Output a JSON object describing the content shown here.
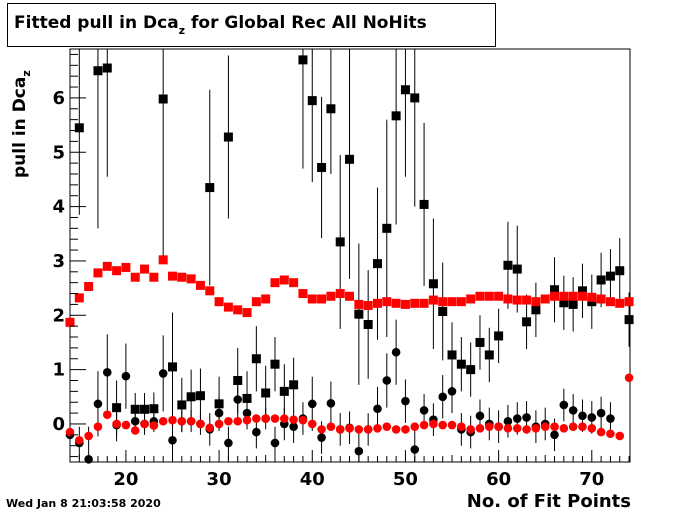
{
  "title": {
    "main": "Fitted pull in Dca",
    "sub": "z",
    "rest": " for Global Rec All NoHits"
  },
  "axes": {
    "ylabel": "pull in Dca",
    "ylabel_sub": "z",
    "xlabel": "No. of Fit Points"
  },
  "timestamp": "Wed Jan  8 21:03:58 2020",
  "colors": {
    "series_black": "#000000",
    "series_red": "#ff0000",
    "frame": "#000000"
  },
  "chart_data": {
    "type": "scatter",
    "xlim": [
      14,
      74.1
    ],
    "ylim": [
      -0.7,
      6.9
    ],
    "xticks": [
      20,
      30,
      40,
      50,
      60,
      70
    ],
    "yticks": [
      0,
      1,
      2,
      3,
      4,
      5,
      6
    ],
    "grid": false,
    "series": [
      {
        "marker": "square",
        "color": "#000000",
        "points": [
          [
            15,
            5.45,
            1.6
          ],
          [
            17,
            6.5,
            2.9
          ],
          [
            18,
            6.55,
            2.0
          ],
          [
            19,
            0.3,
            0.5
          ],
          [
            21,
            0.27,
            0.3
          ],
          [
            22,
            0.27,
            0.3
          ],
          [
            23,
            0.28,
            0.3
          ],
          [
            24,
            5.98,
            3.0
          ],
          [
            25,
            1.05,
            1.0
          ],
          [
            26,
            0.35,
            0.5
          ],
          [
            27,
            0.5,
            0.5
          ],
          [
            28,
            0.52,
            0.5
          ],
          [
            29,
            4.35,
            1.8
          ],
          [
            30,
            0.37,
            0.5
          ],
          [
            31,
            5.28,
            1.5
          ],
          [
            32,
            0.8,
            0.6
          ],
          [
            33,
            0.47,
            0.5
          ],
          [
            34,
            1.2,
            0.6
          ],
          [
            35,
            0.57,
            0.5
          ],
          [
            36,
            1.1,
            0.5
          ],
          [
            37,
            0.6,
            0.5
          ],
          [
            38,
            0.72,
            0.5
          ],
          [
            39,
            6.7,
            2.0
          ],
          [
            40,
            5.95,
            1.5
          ],
          [
            41,
            4.72,
            1.3
          ],
          [
            42,
            5.8,
            1.2
          ],
          [
            43,
            3.35,
            1.6
          ],
          [
            44,
            4.87,
            2.2
          ],
          [
            45,
            2.02,
            1.3
          ],
          [
            46,
            1.83,
            1.0
          ],
          [
            47,
            2.95,
            1.4
          ],
          [
            48,
            3.6,
            2.0
          ],
          [
            49,
            5.67,
            2.0
          ],
          [
            50,
            6.15,
            1.6
          ],
          [
            51,
            6.0,
            2.0
          ],
          [
            52,
            4.04,
            1.5
          ],
          [
            53,
            2.58,
            1.2
          ],
          [
            54,
            2.07,
            0.9
          ],
          [
            55,
            1.27,
            0.6
          ],
          [
            56,
            1.1,
            0.5
          ],
          [
            57,
            1.0,
            0.5
          ],
          [
            58,
            1.5,
            0.5
          ],
          [
            59,
            1.27,
            0.5
          ],
          [
            60,
            1.62,
            0.5
          ],
          [
            61,
            2.92,
            0.8
          ],
          [
            62,
            2.85,
            0.8
          ],
          [
            63,
            1.88,
            0.5
          ],
          [
            64,
            2.1,
            0.5
          ],
          [
            66,
            2.47,
            0.6
          ],
          [
            67,
            2.23,
            0.5
          ],
          [
            68,
            2.2,
            0.5
          ],
          [
            69,
            2.45,
            0.5
          ],
          [
            70,
            2.25,
            0.5
          ],
          [
            71,
            2.65,
            0.5
          ],
          [
            72,
            2.72,
            0.5
          ],
          [
            73,
            2.82,
            0.6
          ],
          [
            74,
            1.92,
            0.5
          ]
        ]
      },
      {
        "marker": "circle",
        "color": "#000000",
        "points": [
          [
            14,
            -0.2,
            0.4
          ],
          [
            15,
            -0.35,
            0.3
          ],
          [
            16,
            -0.65,
            0.6
          ],
          [
            17,
            0.37,
            0.6
          ],
          [
            18,
            0.95,
            0.7
          ],
          [
            19,
            -0.02,
            0.3
          ],
          [
            20,
            0.88,
            0.6
          ],
          [
            21,
            0.05,
            0.2
          ],
          [
            22,
            0.0,
            0.2
          ],
          [
            23,
            0.05,
            0.2
          ],
          [
            24,
            0.93,
            0.7
          ],
          [
            25,
            -0.3,
            0.3
          ],
          [
            26,
            0.05,
            0.2
          ],
          [
            27,
            0.05,
            0.2
          ],
          [
            28,
            0.0,
            0.2
          ],
          [
            29,
            -0.1,
            0.3
          ],
          [
            30,
            0.2,
            0.3
          ],
          [
            31,
            -0.35,
            0.3
          ],
          [
            32,
            0.45,
            0.4
          ],
          [
            33,
            0.2,
            0.3
          ],
          [
            34,
            -0.15,
            0.3
          ],
          [
            35,
            0.1,
            0.2
          ],
          [
            36,
            -0.35,
            0.3
          ],
          [
            37,
            0.0,
            0.3
          ],
          [
            38,
            -0.05,
            0.3
          ],
          [
            39,
            0.1,
            0.3
          ],
          [
            40,
            0.37,
            0.5
          ],
          [
            41,
            -0.25,
            0.3
          ],
          [
            42,
            0.38,
            0.4
          ],
          [
            43,
            -0.1,
            0.3
          ],
          [
            44,
            -0.07,
            0.3
          ],
          [
            45,
            -0.5,
            0.4
          ],
          [
            46,
            -0.1,
            0.3
          ],
          [
            47,
            0.28,
            0.4
          ],
          [
            48,
            0.8,
            0.5
          ],
          [
            49,
            1.32,
            0.6
          ],
          [
            50,
            0.42,
            0.4
          ],
          [
            51,
            -0.47,
            0.4
          ],
          [
            52,
            0.25,
            0.3
          ],
          [
            53,
            0.08,
            0.3
          ],
          [
            54,
            0.5,
            0.4
          ],
          [
            55,
            0.6,
            0.4
          ],
          [
            56,
            -0.1,
            0.3
          ],
          [
            57,
            -0.15,
            0.3
          ],
          [
            58,
            0.15,
            0.3
          ],
          [
            59,
            0.0,
            0.3
          ],
          [
            60,
            -0.05,
            0.3
          ],
          [
            61,
            0.05,
            0.3
          ],
          [
            62,
            0.1,
            0.3
          ],
          [
            63,
            0.12,
            0.3
          ],
          [
            64,
            -0.05,
            0.3
          ],
          [
            65,
            0.0,
            0.3
          ],
          [
            66,
            -0.2,
            0.3
          ],
          [
            67,
            0.35,
            0.3
          ],
          [
            68,
            0.25,
            0.3
          ],
          [
            69,
            0.15,
            0.3
          ],
          [
            70,
            0.12,
            0.3
          ],
          [
            71,
            0.2,
            0.3
          ],
          [
            72,
            0.1,
            0.3
          ]
        ]
      },
      {
        "marker": "square",
        "color": "#ff0000",
        "points": [
          [
            14,
            1.87
          ],
          [
            15,
            2.32
          ],
          [
            16,
            2.53
          ],
          [
            17,
            2.78
          ],
          [
            18,
            2.9
          ],
          [
            19,
            2.82
          ],
          [
            20,
            2.88
          ],
          [
            21,
            2.7
          ],
          [
            22,
            2.85
          ],
          [
            23,
            2.7
          ],
          [
            24,
            3.02
          ],
          [
            25,
            2.72
          ],
          [
            26,
            2.7
          ],
          [
            27,
            2.67
          ],
          [
            28,
            2.55
          ],
          [
            29,
            2.45
          ],
          [
            30,
            2.25
          ],
          [
            31,
            2.15
          ],
          [
            32,
            2.1
          ],
          [
            33,
            2.05
          ],
          [
            34,
            2.25
          ],
          [
            35,
            2.3
          ],
          [
            36,
            2.6
          ],
          [
            37,
            2.65
          ],
          [
            38,
            2.6
          ],
          [
            39,
            2.4
          ],
          [
            40,
            2.3
          ],
          [
            41,
            2.3
          ],
          [
            42,
            2.35
          ],
          [
            43,
            2.4
          ],
          [
            44,
            2.35
          ],
          [
            45,
            2.2
          ],
          [
            46,
            2.18
          ],
          [
            47,
            2.22
          ],
          [
            48,
            2.25
          ],
          [
            49,
            2.22
          ],
          [
            50,
            2.2
          ],
          [
            51,
            2.22
          ],
          [
            52,
            2.22
          ],
          [
            53,
            2.28
          ],
          [
            54,
            2.25
          ],
          [
            55,
            2.25
          ],
          [
            56,
            2.25
          ],
          [
            57,
            2.3
          ],
          [
            58,
            2.35
          ],
          [
            59,
            2.35
          ],
          [
            60,
            2.35
          ],
          [
            61,
            2.3
          ],
          [
            62,
            2.28
          ],
          [
            63,
            2.28
          ],
          [
            64,
            2.25
          ],
          [
            65,
            2.3
          ],
          [
            66,
            2.35
          ],
          [
            67,
            2.35
          ],
          [
            68,
            2.35
          ],
          [
            69,
            2.35
          ],
          [
            70,
            2.33
          ],
          [
            71,
            2.3
          ],
          [
            72,
            2.25
          ],
          [
            73,
            2.22
          ],
          [
            74,
            2.25
          ]
        ]
      },
      {
        "marker": "circle",
        "color": "#ff0000",
        "points": [
          [
            14,
            -0.15
          ],
          [
            15,
            -0.3
          ],
          [
            16,
            -0.22
          ],
          [
            17,
            -0.05
          ],
          [
            18,
            0.17
          ],
          [
            19,
            0.0
          ],
          [
            20,
            -0.02
          ],
          [
            21,
            -0.12
          ],
          [
            22,
            0.0
          ],
          [
            23,
            -0.03
          ],
          [
            24,
            0.05
          ],
          [
            25,
            0.07
          ],
          [
            26,
            0.05
          ],
          [
            27,
            0.05
          ],
          [
            28,
            0.0
          ],
          [
            29,
            -0.07
          ],
          [
            30,
            0.0
          ],
          [
            31,
            0.05
          ],
          [
            32,
            0.05
          ],
          [
            33,
            0.07
          ],
          [
            34,
            0.1
          ],
          [
            35,
            0.1
          ],
          [
            36,
            0.1
          ],
          [
            37,
            0.1
          ],
          [
            38,
            0.08
          ],
          [
            39,
            0.07
          ],
          [
            40,
            0.0
          ],
          [
            41,
            -0.1
          ],
          [
            42,
            -0.05
          ],
          [
            43,
            -0.1
          ],
          [
            44,
            -0.08
          ],
          [
            45,
            -0.1
          ],
          [
            46,
            -0.1
          ],
          [
            47,
            -0.08
          ],
          [
            48,
            -0.05
          ],
          [
            49,
            -0.1
          ],
          [
            50,
            -0.1
          ],
          [
            51,
            -0.05
          ],
          [
            52,
            -0.02
          ],
          [
            53,
            0.0
          ],
          [
            54,
            -0.02
          ],
          [
            55,
            -0.02
          ],
          [
            56,
            -0.05
          ],
          [
            57,
            -0.1
          ],
          [
            58,
            -0.08
          ],
          [
            59,
            -0.05
          ],
          [
            60,
            -0.05
          ],
          [
            61,
            -0.08
          ],
          [
            62,
            -0.08
          ],
          [
            63,
            -0.1
          ],
          [
            64,
            -0.08
          ],
          [
            65,
            -0.05
          ],
          [
            66,
            -0.05
          ],
          [
            67,
            -0.08
          ],
          [
            68,
            -0.05
          ],
          [
            69,
            -0.05
          ],
          [
            70,
            -0.08
          ],
          [
            71,
            -0.15
          ],
          [
            72,
            -0.18
          ],
          [
            73,
            -0.22
          ],
          [
            74,
            0.85
          ]
        ]
      }
    ]
  }
}
